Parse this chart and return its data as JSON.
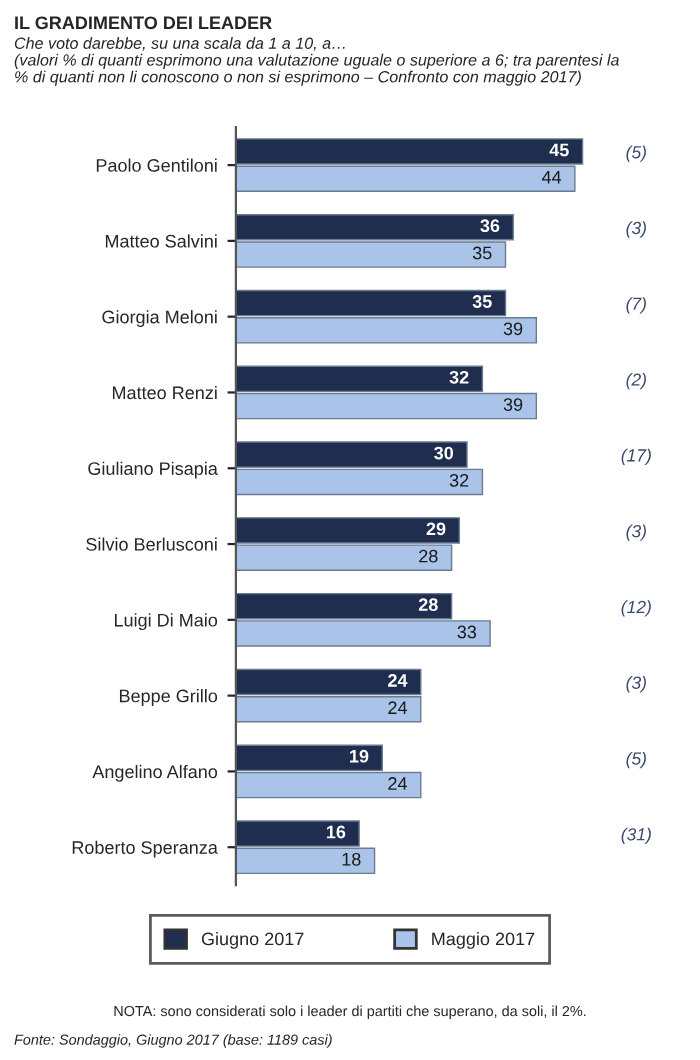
{
  "chart_data": {
    "type": "bar",
    "orientation": "horizontal",
    "title": "IL GRADIMENTO DEI LEADER",
    "subtitle": "Che voto darebbe, su una scala da 1 a 10, a…\n(valori % di quanti esprimono una valutazione uguale o superiore a 6; tra parentesi la\n% di quanti non li conoscono o non si esprimono – Confronto con maggio 2017)",
    "categories": [
      "Paolo Gentiloni",
      "Matteo Salvini",
      "Giorgia Meloni",
      "Matteo Renzi",
      "Giuliano Pisapia",
      "Silvio Berlusconi",
      "Luigi Di Maio",
      "Beppe Grillo",
      "Angelino Alfano",
      "Roberto Speranza"
    ],
    "series": [
      {
        "name": "Giugno 2017",
        "color": "#1f2d4f",
        "values": [
          45,
          36,
          35,
          32,
          30,
          29,
          28,
          24,
          19,
          16
        ]
      },
      {
        "name": "Maggio 2017",
        "color": "#a9c4e8",
        "values": [
          44,
          35,
          39,
          39,
          32,
          28,
          33,
          24,
          24,
          18
        ]
      }
    ],
    "tick_labels": "y",
    "data_labels": true,
    "legend": "bottom",
    "grid": false,
    "annotations": [
      "(5)",
      "(3)",
      "(7)",
      "(2)",
      "(17)",
      "(3)",
      "(12)",
      "(3)",
      "(5)",
      "(31)",
      "NOTA: sono considerati solo i leader di partiti che superano, da soli, il 2%.",
      "Fonte: Sondaggio, Giugno 2017 (base: 1189 casi)"
    ]
  }
}
